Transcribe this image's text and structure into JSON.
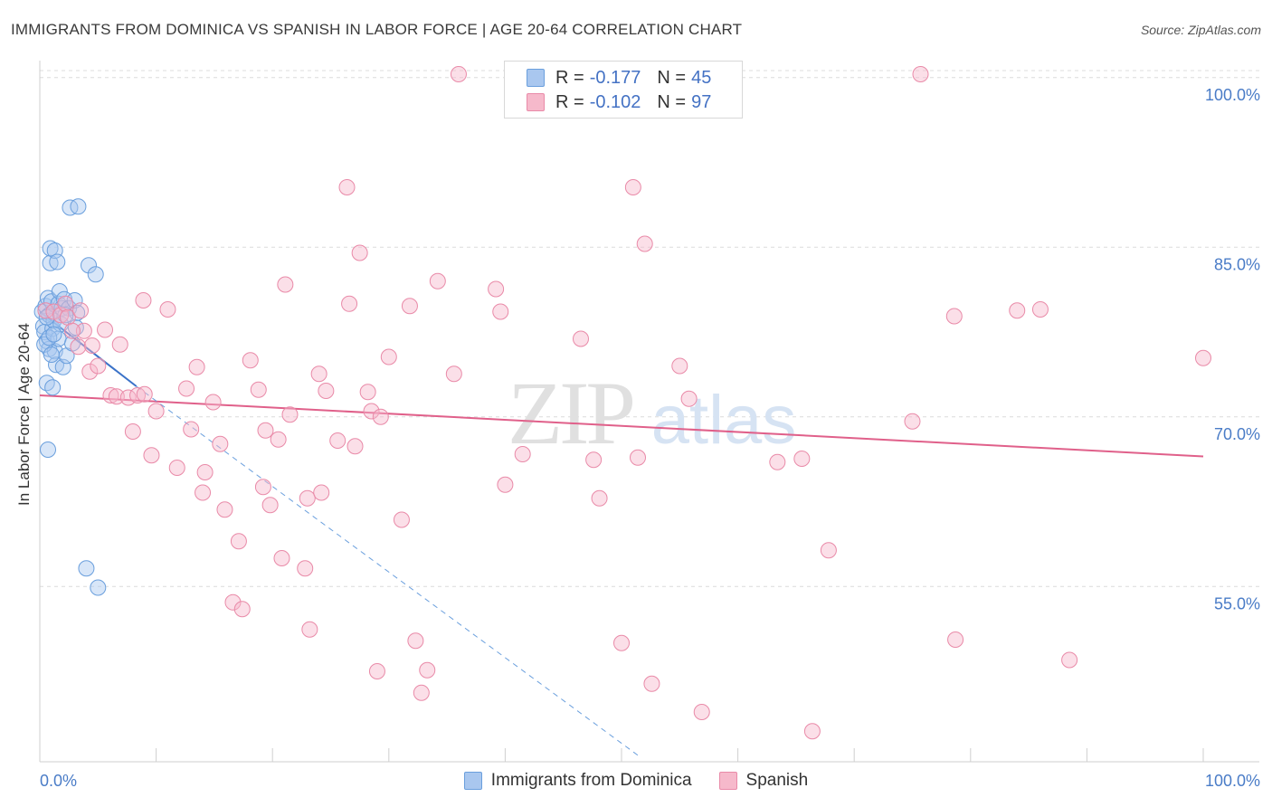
{
  "title": "IMMIGRANTS FROM DOMINICA VS SPANISH IN LABOR FORCE | AGE 20-64 CORRELATION CHART",
  "source": "Source: ZipAtlas.com",
  "watermark": {
    "zip": "ZIP",
    "atlas": "atlas"
  },
  "legend": {
    "r_label": "R =",
    "n_label": "N =",
    "series": [
      {
        "name": "Immigrants from Dominica",
        "r": "-0.177",
        "n": "45",
        "fill": "#a9c7ef",
        "stroke": "#6a9fdd"
      },
      {
        "name": "Spanish",
        "r": "-0.102",
        "n": "97",
        "fill": "#f6b9cb",
        "stroke": "#e98aa8"
      }
    ]
  },
  "chart_data": {
    "type": "scatter",
    "title": "IMMIGRANTS FROM DOMINICA VS SPANISH IN LABOR FORCE | AGE 20-64 CORRELATION CHART",
    "xlabel": "",
    "ylabel": "In Labor Force | Age 20-64",
    "xlim": [
      0,
      100
    ],
    "ylim": [
      39.5,
      101.5
    ],
    "x_tick_labels": [
      "0.0%",
      "100.0%"
    ],
    "y_ticks": [
      {
        "value": 55,
        "label": "55.0%"
      },
      {
        "value": 70,
        "label": "70.0%"
      },
      {
        "value": 85,
        "label": "85.0%"
      },
      {
        "value": 100,
        "label": "100.0%"
      }
    ],
    "series": [
      {
        "name": "Immigrants from Dominica",
        "color": "#6a9fdd",
        "points": [
          [
            0.2,
            79.3
          ],
          [
            0.3,
            78.0
          ],
          [
            0.4,
            77.5
          ],
          [
            0.5,
            79.8
          ],
          [
            0.6,
            76.7
          ],
          [
            0.6,
            73.0
          ],
          [
            0.7,
            80.5
          ],
          [
            0.8,
            76.0
          ],
          [
            0.8,
            79.0
          ],
          [
            0.9,
            84.9
          ],
          [
            0.9,
            83.6
          ],
          [
            1.0,
            80.2
          ],
          [
            1.1,
            77.8
          ],
          [
            1.1,
            72.6
          ],
          [
            1.2,
            78.5
          ],
          [
            1.3,
            84.7
          ],
          [
            1.3,
            75.8
          ],
          [
            1.4,
            74.6
          ],
          [
            1.5,
            83.7
          ],
          [
            1.6,
            80.0
          ],
          [
            1.6,
            76.9
          ],
          [
            1.7,
            81.1
          ],
          [
            1.8,
            78.2
          ],
          [
            1.9,
            79.6
          ],
          [
            2.0,
            74.4
          ],
          [
            2.1,
            80.4
          ],
          [
            2.3,
            75.4
          ],
          [
            2.5,
            79.6
          ],
          [
            2.6,
            88.5
          ],
          [
            2.8,
            76.5
          ],
          [
            3.0,
            80.3
          ],
          [
            3.1,
            77.9
          ],
          [
            3.2,
            79.2
          ],
          [
            3.3,
            88.6
          ],
          [
            4.2,
            83.4
          ],
          [
            4.8,
            82.6
          ],
          [
            0.4,
            76.4
          ],
          [
            0.6,
            78.8
          ],
          [
            0.8,
            77.0
          ],
          [
            1.0,
            75.5
          ],
          [
            1.2,
            77.3
          ],
          [
            0.7,
            67.1
          ],
          [
            4.0,
            56.6
          ],
          [
            5.0,
            54.9
          ],
          [
            2.2,
            79.0
          ]
        ],
        "trendline": {
          "x0": 0,
          "y0": 79.3,
          "x1": 8.3,
          "y1": 72.7
        },
        "extrapolated": {
          "x0": 8.3,
          "y0": 72.7,
          "x1": 51.5,
          "y1": 40.0
        }
      },
      {
        "name": "Spanish",
        "color": "#e98aa8",
        "points": [
          [
            0.5,
            79.4
          ],
          [
            1.2,
            79.3
          ],
          [
            1.8,
            79.0
          ],
          [
            2.2,
            80.0
          ],
          [
            2.4,
            78.8
          ],
          [
            3.3,
            76.2
          ],
          [
            3.8,
            77.6
          ],
          [
            4.3,
            74.0
          ],
          [
            4.5,
            76.3
          ],
          [
            5.0,
            74.5
          ],
          [
            5.6,
            77.7
          ],
          [
            6.1,
            71.9
          ],
          [
            6.6,
            71.8
          ],
          [
            6.9,
            76.4
          ],
          [
            7.6,
            71.7
          ],
          [
            8.0,
            68.7
          ],
          [
            8.4,
            71.9
          ],
          [
            8.9,
            80.3
          ],
          [
            9.6,
            66.6
          ],
          [
            10.0,
            70.5
          ],
          [
            11.0,
            79.5
          ],
          [
            11.8,
            65.5
          ],
          [
            12.6,
            72.5
          ],
          [
            13.0,
            68.9
          ],
          [
            13.5,
            74.4
          ],
          [
            14.0,
            63.3
          ],
          [
            14.2,
            65.1
          ],
          [
            14.9,
            71.3
          ],
          [
            15.5,
            67.6
          ],
          [
            15.9,
            61.8
          ],
          [
            16.6,
            53.6
          ],
          [
            17.1,
            59.0
          ],
          [
            17.4,
            53.0
          ],
          [
            18.1,
            75.0
          ],
          [
            18.8,
            72.4
          ],
          [
            19.2,
            63.8
          ],
          [
            19.4,
            68.8
          ],
          [
            19.8,
            62.2
          ],
          [
            20.5,
            68.0
          ],
          [
            20.8,
            57.5
          ],
          [
            21.1,
            81.7
          ],
          [
            21.5,
            70.2
          ],
          [
            22.8,
            56.6
          ],
          [
            23.0,
            62.8
          ],
          [
            23.2,
            51.2
          ],
          [
            24.0,
            73.8
          ],
          [
            24.2,
            63.3
          ],
          [
            24.6,
            72.3
          ],
          [
            25.6,
            67.9
          ],
          [
            26.4,
            90.3
          ],
          [
            26.6,
            80.0
          ],
          [
            27.1,
            67.4
          ],
          [
            27.5,
            84.5
          ],
          [
            28.2,
            72.2
          ],
          [
            28.5,
            70.5
          ],
          [
            29.0,
            47.5
          ],
          [
            29.3,
            70.0
          ],
          [
            30.0,
            75.3
          ],
          [
            31.1,
            60.9
          ],
          [
            31.8,
            79.8
          ],
          [
            32.3,
            50.2
          ],
          [
            32.8,
            45.6
          ],
          [
            33.3,
            47.6
          ],
          [
            34.2,
            82.0
          ],
          [
            35.6,
            73.8
          ],
          [
            36.0,
            100.3
          ],
          [
            39.2,
            81.3
          ],
          [
            39.6,
            79.3
          ],
          [
            40.0,
            64.0
          ],
          [
            41.5,
            66.7
          ],
          [
            46.2,
            97.5
          ],
          [
            46.5,
            76.9
          ],
          [
            47.6,
            66.2
          ],
          [
            48.1,
            62.8
          ],
          [
            50.0,
            50.0
          ],
          [
            51.0,
            90.3
          ],
          [
            51.4,
            66.4
          ],
          [
            52.0,
            85.3
          ],
          [
            52.6,
            46.4
          ],
          [
            55.0,
            74.5
          ],
          [
            55.8,
            71.6
          ],
          [
            56.9,
            43.9
          ],
          [
            63.4,
            66.0
          ],
          [
            65.5,
            66.3
          ],
          [
            66.4,
            42.2
          ],
          [
            67.8,
            58.2
          ],
          [
            75.0,
            69.6
          ],
          [
            75.7,
            100.3
          ],
          [
            78.6,
            78.9
          ],
          [
            78.7,
            50.3
          ],
          [
            84.0,
            79.4
          ],
          [
            86.0,
            79.5
          ],
          [
            88.5,
            48.5
          ],
          [
            100.0,
            75.2
          ],
          [
            3.5,
            79.4
          ],
          [
            2.8,
            77.6
          ],
          [
            9.0,
            72.0
          ]
        ],
        "trendline": {
          "x0": 0,
          "y0": 71.9,
          "x1": 100,
          "y1": 66.5
        }
      }
    ]
  }
}
